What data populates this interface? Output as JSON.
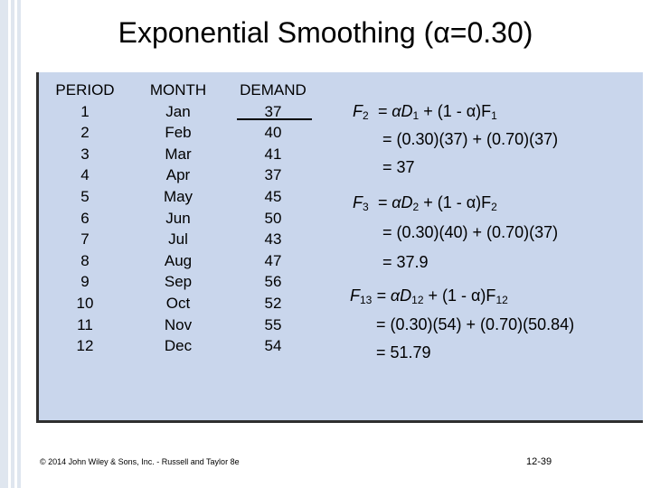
{
  "title": "Exponential Smoothing (α=0.30)",
  "table": {
    "headers": [
      "PERIOD",
      "MONTH",
      "DEMAND"
    ],
    "periods": [
      "1",
      "2",
      "3",
      "4",
      "5",
      "6",
      "7",
      "8",
      "9",
      "10",
      "11",
      "12"
    ],
    "months": [
      "Jan",
      "Feb",
      "Mar",
      "Apr",
      "May",
      "Jun",
      "Jul",
      "Aug",
      "Sep",
      "Oct",
      "Nov",
      "Dec"
    ],
    "demand": [
      "37",
      "40",
      "41",
      "37",
      "45",
      "50",
      "43",
      "47",
      "56",
      "52",
      "55",
      "54"
    ]
  },
  "calcs": {
    "f2": {
      "lhs": "F",
      "lhs_sub": "2",
      "rhs_a": "= αD",
      "rhs_a_sub": "1",
      "rhs_b": " + (1 - α)F",
      "rhs_b_sub": "1",
      "line2": "= (0.30)(37) + (0.70)(37)",
      "line3": "= 37"
    },
    "f3": {
      "lhs": "F",
      "lhs_sub": "3",
      "rhs_a": "= αD",
      "rhs_a_sub": "2",
      "rhs_b": " + (1 - α)F",
      "rhs_b_sub": "2",
      "line2": "= (0.30)(40) + (0.70)(37)",
      "line3": "= 37.9"
    },
    "f13": {
      "lhs": "F",
      "lhs_sub": "13",
      "rhs_a": "= αD",
      "rhs_a_sub": "12",
      "rhs_b": " + (1 - α)F",
      "rhs_b_sub": "12",
      "line2": "= (0.30)(54) + (0.70)(50.84)",
      "line3": "= 51.79"
    }
  },
  "footer": {
    "copyright": "© 2014 John Wiley & Sons, Inc. - Russell and Taylor 8e",
    "page": "12-39"
  }
}
